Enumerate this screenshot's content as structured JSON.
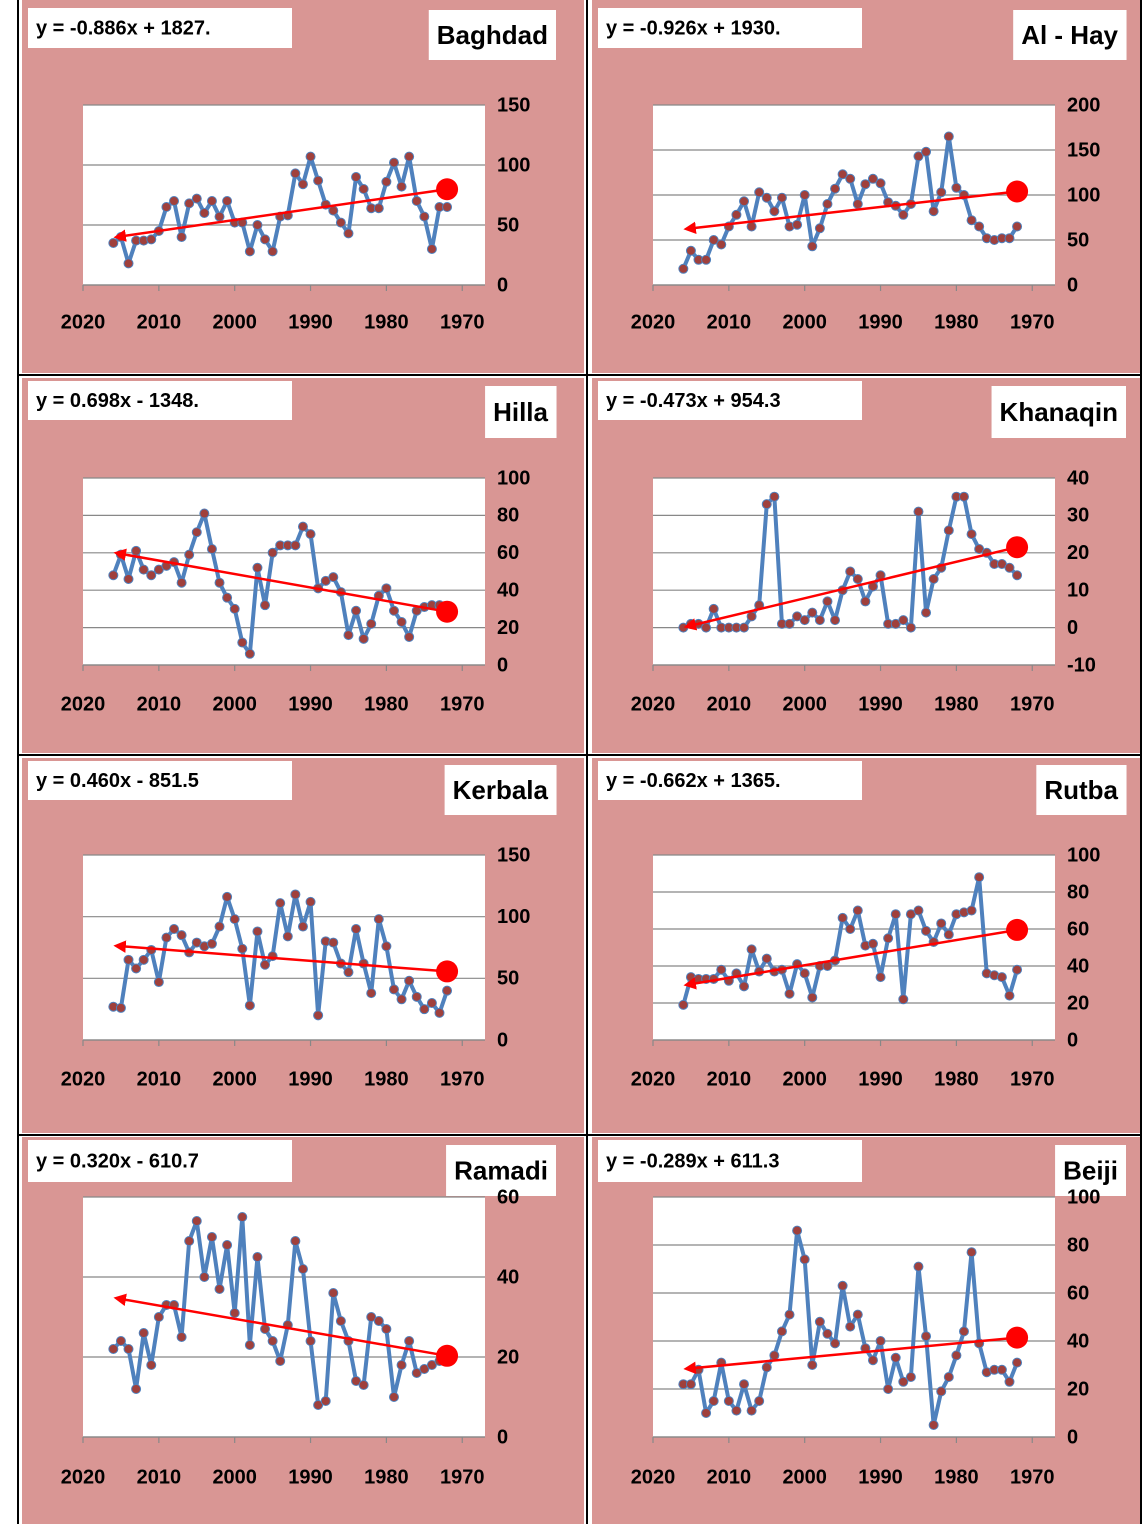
{
  "chart_data": [
    {
      "type": "line",
      "title": "Baghdad",
      "equation": "y = -0.886x + 1827.",
      "color": "#4f81bd",
      "marker_color": "#a0403c",
      "x": [
        2016,
        2015,
        2014,
        2013,
        2012,
        2011,
        2010,
        2009,
        2008,
        2007,
        2006,
        2005,
        2004,
        2003,
        2002,
        2001,
        2000,
        1999,
        1998,
        1997,
        1996,
        1995,
        1994,
        1993,
        1992,
        1991,
        1990,
        1989,
        1988,
        1987,
        1986,
        1985,
        1984,
        1983,
        1982,
        1981,
        1980,
        1979,
        1978,
        1977,
        1976,
        1975,
        1974,
        1973,
        1972
      ],
      "values": [
        35,
        40,
        18,
        37,
        37,
        38,
        45,
        65,
        70,
        40,
        68,
        72,
        60,
        70,
        57,
        70,
        52,
        52,
        28,
        50,
        38,
        28,
        57,
        58,
        93,
        84,
        107,
        87,
        67,
        62,
        52,
        43,
        90,
        80,
        64,
        64,
        86,
        102,
        82,
        107,
        70,
        57,
        30,
        65,
        65
      ],
      "xlim": [
        2020,
        1967
      ],
      "xticks": [
        2020,
        2010,
        2000,
        1990,
        1980,
        1970
      ],
      "ylim": [
        0,
        150
      ],
      "yticks": [
        0,
        50,
        100,
        150
      ],
      "grid": true,
      "trend": {
        "color": "#ff0000",
        "x": [
          2016,
          1972
        ],
        "values": [
          40.8,
          79.8
        ]
      }
    },
    {
      "type": "line",
      "title": "Al - Hay",
      "equation": "y = -0.926x + 1930.",
      "color": "#4f81bd",
      "marker_color": "#a0403c",
      "x": [
        2016,
        2015,
        2014,
        2013,
        2012,
        2011,
        2010,
        2009,
        2008,
        2007,
        2006,
        2005,
        2004,
        2003,
        2002,
        2001,
        2000,
        1999,
        1998,
        1997,
        1996,
        1995,
        1994,
        1993,
        1992,
        1991,
        1990,
        1989,
        1988,
        1987,
        1986,
        1985,
        1984,
        1983,
        1982,
        1981,
        1980,
        1979,
        1978,
        1977,
        1976,
        1975,
        1974,
        1973,
        1972
      ],
      "values": [
        18,
        38,
        28,
        28,
        50,
        45,
        65,
        78,
        93,
        65,
        103,
        97,
        82,
        97,
        65,
        67,
        100,
        43,
        63,
        90,
        107,
        123,
        118,
        90,
        112,
        118,
        113,
        92,
        88,
        78,
        90,
        143,
        148,
        82,
        103,
        165,
        108,
        100,
        72,
        65,
        52,
        50,
        52,
        52,
        65
      ],
      "xlim": [
        2020,
        1967
      ],
      "xticks": [
        2020,
        2010,
        2000,
        1990,
        1980,
        1970
      ],
      "ylim": [
        0,
        200
      ],
      "yticks": [
        0,
        50,
        100,
        150,
        200
      ],
      "grid": true,
      "trend": {
        "color": "#ff0000",
        "x": [
          2016,
          1972
        ],
        "values": [
          63.2,
          103.9
        ]
      }
    },
    {
      "type": "line",
      "title": "Hilla",
      "equation": "y = 0.698x - 1348.",
      "color": "#4f81bd",
      "marker_color": "#a0403c",
      "x": [
        2016,
        2015,
        2014,
        2013,
        2012,
        2011,
        2010,
        2009,
        2008,
        2007,
        2006,
        2005,
        2004,
        2003,
        2002,
        2001,
        2000,
        1999,
        1998,
        1997,
        1996,
        1995,
        1994,
        1993,
        1992,
        1991,
        1990,
        1989,
        1988,
        1987,
        1986,
        1985,
        1984,
        1983,
        1982,
        1981,
        1980,
        1979,
        1978,
        1977,
        1976,
        1975,
        1974,
        1973,
        1972
      ],
      "values": [
        48,
        59,
        46,
        61,
        51,
        48,
        51,
        53,
        55,
        44,
        59,
        71,
        81,
        62,
        44,
        36,
        30,
        12,
        6,
        52,
        32,
        60,
        64,
        64,
        64,
        74,
        70,
        41,
        45,
        47,
        39,
        16,
        29,
        14,
        22,
        37,
        41,
        29,
        23,
        15,
        29,
        31,
        32,
        32,
        30
      ],
      "xlim": [
        2020,
        1967
      ],
      "xticks": [
        2020,
        2010,
        2000,
        1990,
        1980,
        1970
      ],
      "ylim": [
        0,
        100
      ],
      "yticks": [
        0,
        20,
        40,
        60,
        80,
        100
      ],
      "grid": true,
      "trend": {
        "color": "#ff0000",
        "x": [
          2016,
          1972
        ],
        "values": [
          59.2,
          28.5
        ]
      }
    },
    {
      "type": "line",
      "title": "Khanaqin",
      "equation": "y = -0.473x + 954.3",
      "color": "#4f81bd",
      "marker_color": "#a0403c",
      "x": [
        2016,
        2015,
        2014,
        2013,
        2012,
        2011,
        2010,
        2009,
        2008,
        2007,
        2006,
        2005,
        2004,
        2003,
        2002,
        2001,
        2000,
        1999,
        1998,
        1997,
        1996,
        1995,
        1994,
        1993,
        1992,
        1991,
        1990,
        1989,
        1988,
        1987,
        1986,
        1985,
        1984,
        1983,
        1982,
        1981,
        1980,
        1979,
        1978,
        1977,
        1976,
        1975,
        1974,
        1973,
        1972
      ],
      "values": [
        0,
        1,
        1,
        0,
        5,
        0,
        0,
        0,
        0,
        3,
        6,
        33,
        35,
        1,
        1,
        3,
        2,
        4,
        2,
        7,
        2,
        10,
        15,
        13,
        7,
        11,
        14,
        1,
        1,
        2,
        0,
        31,
        4,
        13,
        16,
        26,
        35,
        35,
        25,
        21,
        20,
        17,
        17,
        16,
        14
      ],
      "xlim": [
        2020,
        1967
      ],
      "xticks": [
        2020,
        2010,
        2000,
        1990,
        1980,
        1970
      ],
      "ylim": [
        -10,
        40
      ],
      "yticks": [
        -10,
        0,
        10,
        20,
        30,
        40
      ],
      "grid": true,
      "trend": {
        "color": "#ff0000",
        "x": [
          2016,
          1972
        ],
        "values": [
          0.7,
          21.5
        ]
      }
    },
    {
      "type": "line",
      "title": "Kerbala",
      "equation": "y = 0.460x - 851.5",
      "color": "#4f81bd",
      "marker_color": "#a0403c",
      "x": [
        2016,
        2015,
        2014,
        2013,
        2012,
        2011,
        2010,
        2009,
        2008,
        2007,
        2006,
        2005,
        2004,
        2003,
        2002,
        2001,
        2000,
        1999,
        1998,
        1997,
        1996,
        1995,
        1994,
        1993,
        1992,
        1991,
        1990,
        1989,
        1988,
        1987,
        1986,
        1985,
        1984,
        1983,
        1982,
        1981,
        1980,
        1979,
        1978,
        1977,
        1976,
        1975,
        1974,
        1973,
        1972
      ],
      "values": [
        27,
        26,
        65,
        58,
        65,
        73,
        47,
        83,
        90,
        85,
        71,
        79,
        76,
        78,
        92,
        116,
        98,
        74,
        28,
        88,
        61,
        68,
        111,
        84,
        118,
        92,
        112,
        20,
        80,
        79,
        62,
        55,
        90,
        62,
        38,
        98,
        76,
        41,
        33,
        48,
        35,
        25,
        30,
        22,
        40
      ],
      "xlim": [
        2020,
        1967
      ],
      "xticks": [
        2020,
        2010,
        2000,
        1990,
        1980,
        1970
      ],
      "ylim": [
        0,
        150
      ],
      "yticks": [
        0,
        50,
        100,
        150
      ],
      "grid": true,
      "trend": {
        "color": "#ff0000",
        "x": [
          2016,
          1972
        ],
        "values": [
          75.9,
          55.6
        ]
      }
    },
    {
      "type": "line",
      "title": "Rutba",
      "equation": "y = -0.662x + 1365.",
      "color": "#4f81bd",
      "marker_color": "#a0403c",
      "x": [
        2016,
        2015,
        2014,
        2013,
        2012,
        2011,
        2010,
        2009,
        2008,
        2007,
        2006,
        2005,
        2004,
        2003,
        2002,
        2001,
        2000,
        1999,
        1998,
        1997,
        1996,
        1995,
        1994,
        1993,
        1992,
        1991,
        1990,
        1989,
        1988,
        1987,
        1986,
        1985,
        1984,
        1983,
        1982,
        1981,
        1980,
        1979,
        1978,
        1977,
        1976,
        1975,
        1974,
        1973,
        1972
      ],
      "values": [
        19,
        34,
        33,
        33,
        33,
        38,
        32,
        36,
        29,
        49,
        37,
        44,
        37,
        38,
        25,
        41,
        36,
        23,
        40,
        40,
        43,
        66,
        60,
        70,
        51,
        52,
        34,
        55,
        68,
        22,
        68,
        70,
        59,
        53,
        63,
        57,
        68,
        69,
        70,
        88,
        36,
        35,
        34,
        24,
        38
      ],
      "xlim": [
        2020,
        1967
      ],
      "xticks": [
        2020,
        2010,
        2000,
        1990,
        1980,
        1970
      ],
      "ylim": [
        0,
        100
      ],
      "yticks": [
        0,
        20,
        40,
        60,
        80,
        100
      ],
      "grid": true,
      "trend": {
        "color": "#ff0000",
        "x": [
          2016,
          1972
        ],
        "values": [
          30.4,
          59.5
        ]
      }
    },
    {
      "type": "line",
      "title": "Ramadi",
      "equation": "y = 0.320x - 610.7",
      "color": "#4f81bd",
      "marker_color": "#a0403c",
      "x": [
        2016,
        2015,
        2014,
        2013,
        2012,
        2011,
        2010,
        2009,
        2008,
        2007,
        2006,
        2005,
        2004,
        2003,
        2002,
        2001,
        2000,
        1999,
        1998,
        1997,
        1996,
        1995,
        1994,
        1993,
        1992,
        1991,
        1990,
        1989,
        1988,
        1987,
        1986,
        1985,
        1984,
        1983,
        1982,
        1981,
        1980,
        1979,
        1978,
        1977,
        1976,
        1975,
        1974,
        1973,
        1972
      ],
      "values": [
        22,
        24,
        22,
        12,
        26,
        18,
        30,
        33,
        33,
        25,
        49,
        54,
        40,
        50,
        37,
        48,
        31,
        55,
        23,
        45,
        27,
        24,
        19,
        28,
        49,
        42,
        24,
        8,
        9,
        36,
        29,
        24,
        14,
        13,
        30,
        29,
        27,
        10,
        18,
        24,
        16,
        17,
        18,
        19,
        20
      ],
      "xlim": [
        2020,
        1967
      ],
      "xticks": [
        2020,
        2010,
        2000,
        1990,
        1980,
        1970
      ],
      "ylim": [
        0,
        60
      ],
      "yticks": [
        0,
        20,
        40,
        60
      ],
      "grid": true,
      "trend": {
        "color": "#ff0000",
        "x": [
          2016,
          1972
        ],
        "values": [
          34.4,
          20.3
        ]
      }
    },
    {
      "type": "line",
      "title": "Beiji",
      "equation": "y = -0.289x + 611.3",
      "color": "#4f81bd",
      "marker_color": "#a0403c",
      "x": [
        2016,
        2015,
        2014,
        2013,
        2012,
        2011,
        2010,
        2009,
        2008,
        2007,
        2006,
        2005,
        2004,
        2003,
        2002,
        2001,
        2000,
        1999,
        1998,
        1997,
        1996,
        1995,
        1994,
        1993,
        1992,
        1991,
        1990,
        1989,
        1988,
        1987,
        1986,
        1985,
        1984,
        1983,
        1982,
        1981,
        1980,
        1979,
        1978,
        1977,
        1976,
        1975,
        1974,
        1973,
        1972
      ],
      "values": [
        22,
        22,
        28,
        10,
        15,
        31,
        15,
        11,
        22,
        11,
        15,
        29,
        34,
        44,
        51,
        86,
        74,
        30,
        48,
        43,
        39,
        63,
        46,
        51,
        37,
        32,
        40,
        20,
        33,
        23,
        25,
        71,
        42,
        5,
        19,
        25,
        34,
        44,
        77,
        39,
        27,
        28,
        28,
        23,
        31
      ],
      "xlim": [
        2020,
        1967
      ],
      "xticks": [
        2020,
        2010,
        2000,
        1990,
        1980,
        1970
      ],
      "ylim": [
        0,
        100
      ],
      "yticks": [
        0,
        20,
        40,
        60,
        80,
        100
      ],
      "grid": true,
      "trend": {
        "color": "#ff0000",
        "x": [
          2016,
          1972
        ],
        "values": [
          28.7,
          41.4
        ]
      }
    }
  ]
}
